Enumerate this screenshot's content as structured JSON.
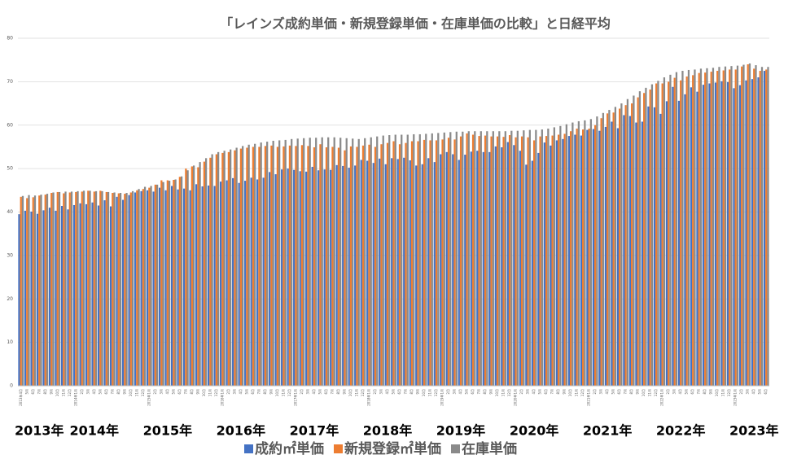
{
  "chart_data": {
    "type": "bar",
    "title": "「レインズ成約単価・新規登録単価・在庫単価の比較」と日経平均",
    "categories": [
      "2013年4月",
      "5月",
      "6月",
      "7月",
      "8月",
      "9月",
      "10月",
      "11月",
      "12月",
      "2014年1月",
      "2月",
      "3月",
      "4月",
      "5月",
      "6月",
      "7月",
      "8月",
      "9月",
      "10月",
      "11月",
      "12月",
      "2015年1月",
      "2月",
      "3月",
      "4月",
      "5月",
      "6月",
      "7月",
      "8月",
      "9月",
      "10月",
      "11月",
      "12月",
      "2016年1月",
      "2月",
      "3月",
      "4月",
      "5月",
      "6月",
      "7月",
      "8月",
      "9月",
      "10月",
      "11月",
      "12月",
      "2017年1月",
      "2月",
      "3月",
      "4月",
      "5月",
      "6月",
      "7月",
      "8月",
      "9月",
      "10月",
      "11月",
      "12月",
      "2018年1月",
      "2月",
      "3月",
      "4月",
      "5月",
      "6月",
      "7月",
      "8月",
      "9月",
      "10月",
      "11月",
      "12月",
      "2019年1月",
      "2月",
      "3月",
      "4月",
      "5月",
      "6月",
      "7月",
      "8月",
      "9月",
      "10月",
      "11月",
      "12月",
      "2020年1月",
      "2月",
      "3月",
      "4月",
      "5月",
      "6月",
      "7月",
      "8月",
      "9月",
      "10月",
      "11月",
      "12月",
      "2021年1月",
      "2月",
      "3月",
      "4月",
      "5月",
      "6月",
      "7月",
      "8月",
      "9月",
      "10月",
      "11月",
      "12月",
      "2022年1月",
      "2月",
      "3月",
      "4月",
      "5月",
      "6月",
      "7月",
      "8月",
      "9月",
      "10月",
      "11月",
      "12月",
      "2023年1月",
      "2月",
      "3月",
      "4月",
      "5月",
      "6月"
    ],
    "series": [
      {
        "name": "成約㎡単価",
        "color": "#4472c4",
        "values": [
          39.5,
          40.3,
          40.1,
          39.6,
          40.4,
          41.0,
          40.3,
          41.4,
          40.6,
          41.6,
          42.0,
          41.8,
          42.2,
          41.5,
          42.7,
          41.3,
          43.5,
          42.8,
          43.9,
          44.5,
          44.8,
          45.0,
          44.7,
          45.6,
          45.0,
          46.0,
          45.2,
          45.4,
          45.0,
          46.4,
          45.9,
          46.1,
          46.0,
          47.0,
          47.3,
          47.8,
          46.7,
          47.2,
          47.9,
          47.5,
          47.9,
          49.2,
          48.7,
          49.8,
          50.0,
          49.7,
          49.4,
          49.3,
          50.4,
          49.6,
          49.8,
          49.7,
          50.8,
          50.6,
          50.2,
          50.7,
          52.0,
          51.8,
          51.3,
          52.3,
          51.0,
          52.4,
          52.2,
          52.5,
          51.9,
          50.7,
          51.0,
          52.4,
          51.5,
          53.3,
          53.8,
          53.3,
          52.0,
          53.2,
          53.9,
          54.1,
          53.8,
          53.8,
          55.1,
          54.9,
          56.1,
          55.4,
          54.1,
          50.9,
          51.8,
          53.6,
          56.0,
          55.3,
          56.5,
          56.8,
          57.5,
          57.8,
          57.6,
          58.9,
          59.1,
          58.7,
          59.6,
          60.8,
          59.3,
          62.3,
          62.1,
          60.6,
          60.8,
          64.3,
          64.1,
          62.6,
          65.5,
          68.8,
          65.6,
          67.1,
          68.7,
          67.7,
          69.3,
          69.6,
          69.8,
          70.1,
          69.9,
          68.5,
          69.2,
          70.3,
          70.6,
          71.0,
          72.5
        ]
      },
      {
        "name": "新規登録㎡単価",
        "color": "#ed7d31",
        "values": [
          43.5,
          43.2,
          43.4,
          43.8,
          44.0,
          44.4,
          44.6,
          44.3,
          44.5,
          44.6,
          44.7,
          44.9,
          44.7,
          44.9,
          44.6,
          44.4,
          44.3,
          44.2,
          44.5,
          45.0,
          45.3,
          45.6,
          46.3,
          47.3,
          47.3,
          47.4,
          48.1,
          50.0,
          50.5,
          50.3,
          51.6,
          52.5,
          53.3,
          53.6,
          53.8,
          54.2,
          54.6,
          54.8,
          55.0,
          55.0,
          55.2,
          55.3,
          55.0,
          55.1,
          55.3,
          55.2,
          55.4,
          55.2,
          54.9,
          55.6,
          54.9,
          55.0,
          54.8,
          54.2,
          55.1,
          55.0,
          55.3,
          55.5,
          55.0,
          55.6,
          55.9,
          56.3,
          55.6,
          55.9,
          56.3,
          56.3,
          56.6,
          56.5,
          56.5,
          56.7,
          57.1,
          56.7,
          57.4,
          58.1,
          57.8,
          57.5,
          57.6,
          57.4,
          57.4,
          57.3,
          57.7,
          57.2,
          57.4,
          57.2,
          56.5,
          57.4,
          57.5,
          57.6,
          57.8,
          58.0,
          58.6,
          59.2,
          59.0,
          59.2,
          60.0,
          61.6,
          62.7,
          62.9,
          63.8,
          64.6,
          65.0,
          66.4,
          67.4,
          68.2,
          69.6,
          69.6,
          70.0,
          70.9,
          70.3,
          71.2,
          71.5,
          72.0,
          72.1,
          72.3,
          72.5,
          72.6,
          72.8,
          72.8,
          73.5,
          74.0,
          73.0,
          72.5,
          72.8
        ]
      },
      {
        "name": "在庫単価",
        "color": "#8a8a8a",
        "values": [
          43.7,
          43.9,
          43.8,
          44.0,
          44.2,
          44.5,
          44.6,
          44.7,
          44.7,
          44.8,
          44.9,
          44.9,
          44.8,
          44.8,
          44.6,
          44.5,
          44.4,
          44.4,
          44.8,
          45.3,
          45.8,
          46.0,
          46.3,
          46.9,
          47.2,
          47.5,
          48.2,
          49.6,
          50.7,
          51.5,
          52.4,
          53.3,
          53.8,
          54.1,
          54.4,
          54.8,
          55.2,
          55.5,
          55.7,
          56.0,
          56.2,
          56.4,
          56.5,
          56.6,
          56.8,
          56.9,
          57.0,
          57.1,
          57.1,
          57.2,
          57.2,
          57.2,
          57.1,
          57.0,
          56.9,
          56.8,
          57.0,
          57.2,
          57.4,
          57.6,
          57.7,
          57.8,
          57.8,
          57.8,
          57.9,
          57.9,
          58.0,
          58.1,
          58.2,
          58.3,
          58.4,
          58.5,
          58.5,
          58.6,
          58.6,
          58.6,
          58.6,
          58.6,
          58.6,
          58.6,
          58.7,
          58.7,
          58.8,
          58.9,
          58.9,
          59.0,
          59.2,
          59.5,
          59.8,
          60.2,
          60.6,
          60.9,
          61.1,
          61.4,
          62.0,
          62.8,
          63.5,
          64.2,
          65.0,
          66.0,
          66.8,
          67.8,
          68.6,
          69.4,
          70.2,
          71.0,
          71.6,
          72.2,
          72.5,
          72.7,
          72.8,
          73.0,
          73.1,
          73.2,
          73.4,
          73.5,
          73.6,
          73.7,
          73.9,
          74.2,
          73.8,
          73.4,
          73.4
        ]
      }
    ],
    "annotations": [
      "2013年",
      "2014年",
      "2015年",
      "2016年",
      "2017年",
      "2018年",
      "2019年",
      "2020年",
      "2021年",
      "2022年",
      "2023年"
    ],
    "ylim": [
      0,
      80
    ],
    "yticks": [
      0,
      10,
      20,
      30,
      40,
      50,
      60,
      70,
      80
    ],
    "grid": true,
    "legend": "bottom"
  }
}
